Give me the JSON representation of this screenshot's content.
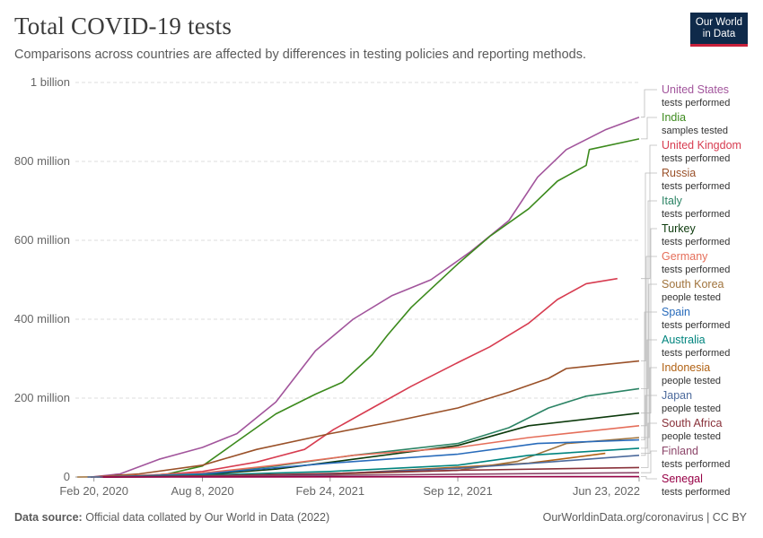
{
  "header": {
    "title": "Total COVID-19 tests",
    "subtitle": "Comparisons across countries are affected by differences in testing policies and reporting methods.",
    "logo_line1": "Our World",
    "logo_line2": "in Data"
  },
  "footer": {
    "source_label": "Data source:",
    "source_text": "Official data collated by Our World in Data (2022)",
    "right_text": "OurWorldinData.org/coronavirus | CC BY"
  },
  "chart_data": {
    "type": "line",
    "title": "Total COVID-19 tests",
    "subtitle": "Comparisons across countries are affected by differences in testing policies and reporting methods.",
    "xlabel": "",
    "ylabel": "",
    "x_range": [
      "2020-01-22",
      "2022-06-23"
    ],
    "x_ticks": [
      {
        "date": "2020-02-20",
        "label": "Feb 20, 2020"
      },
      {
        "date": "2020-08-08",
        "label": "Aug 8, 2020"
      },
      {
        "date": "2021-02-24",
        "label": "Feb 24, 2021"
      },
      {
        "date": "2021-09-12",
        "label": "Sep 12, 2021"
      },
      {
        "date": "2022-06-23",
        "label": "Jun 23, 2022"
      }
    ],
    "ylim": [
      0,
      1000000000
    ],
    "y_ticks": [
      {
        "value": 0,
        "label": "0"
      },
      {
        "value": 200000000,
        "label": "200 million"
      },
      {
        "value": 400000000,
        "label": "400 million"
      },
      {
        "value": 600000000,
        "label": "600 million"
      },
      {
        "value": 800000000,
        "label": "800 million"
      },
      {
        "value": 1000000000,
        "label": "1 billion"
      }
    ],
    "grid": true,
    "legend": "right",
    "series": [
      {
        "name": "United States",
        "unit": "tests performed",
        "color": "#a2559c",
        "points": [
          [
            "2020-02-15",
            0
          ],
          [
            "2020-04-01",
            8000000
          ],
          [
            "2020-06-01",
            45000000
          ],
          [
            "2020-08-08",
            75000000
          ],
          [
            "2020-10-01",
            110000000
          ],
          [
            "2020-12-01",
            190000000
          ],
          [
            "2021-02-01",
            320000000
          ],
          [
            "2021-04-01",
            400000000
          ],
          [
            "2021-06-01",
            460000000
          ],
          [
            "2021-08-01",
            500000000
          ],
          [
            "2021-10-01",
            570000000
          ],
          [
            "2021-12-01",
            650000000
          ],
          [
            "2022-01-15",
            760000000
          ],
          [
            "2022-03-01",
            830000000
          ],
          [
            "2022-05-01",
            880000000
          ],
          [
            "2022-06-23",
            912000000
          ]
        ]
      },
      {
        "name": "India",
        "unit": "samples tested",
        "color": "#3c8a1d",
        "points": [
          [
            "2020-03-01",
            0
          ],
          [
            "2020-05-01",
            2000000
          ],
          [
            "2020-06-15",
            8000000
          ],
          [
            "2020-08-08",
            28000000
          ],
          [
            "2020-10-01",
            90000000
          ],
          [
            "2020-12-01",
            160000000
          ],
          [
            "2021-02-01",
            210000000
          ],
          [
            "2021-03-15",
            240000000
          ],
          [
            "2021-05-01",
            310000000
          ],
          [
            "2021-05-25",
            360000000
          ],
          [
            "2021-07-01",
            430000000
          ],
          [
            "2021-09-12",
            540000000
          ],
          [
            "2021-11-01",
            610000000
          ],
          [
            "2022-01-01",
            680000000
          ],
          [
            "2022-02-15",
            750000000
          ],
          [
            "2022-04-01",
            790000000
          ],
          [
            "2022-04-06",
            830000000
          ],
          [
            "2022-06-23",
            857000000
          ]
        ]
      },
      {
        "name": "United Kingdom",
        "unit": "tests performed",
        "color": "#d73c50",
        "points": [
          [
            "2020-02-15",
            0
          ],
          [
            "2020-05-01",
            2000000
          ],
          [
            "2020-08-08",
            14000000
          ],
          [
            "2020-11-01",
            38000000
          ],
          [
            "2021-01-15",
            70000000
          ],
          [
            "2021-03-01",
            120000000
          ],
          [
            "2021-05-01",
            175000000
          ],
          [
            "2021-07-01",
            230000000
          ],
          [
            "2021-09-12",
            290000000
          ],
          [
            "2021-11-01",
            330000000
          ],
          [
            "2022-01-01",
            390000000
          ],
          [
            "2022-02-15",
            450000000
          ],
          [
            "2022-04-01",
            490000000
          ],
          [
            "2022-05-20",
            503000000
          ]
        ]
      },
      {
        "name": "Russia",
        "unit": "tests performed",
        "color": "#9a5129",
        "points": [
          [
            "2020-02-15",
            0
          ],
          [
            "2020-05-01",
            8000000
          ],
          [
            "2020-08-08",
            30000000
          ],
          [
            "2020-11-01",
            70000000
          ],
          [
            "2021-02-24",
            110000000
          ],
          [
            "2021-06-01",
            140000000
          ],
          [
            "2021-09-12",
            175000000
          ],
          [
            "2021-12-01",
            215000000
          ],
          [
            "2022-02-01",
            250000000
          ],
          [
            "2022-03-01",
            275000000
          ],
          [
            "2022-06-23",
            294000000
          ]
        ]
      },
      {
        "name": "Italy",
        "unit": "tests performed",
        "color": "#2c8465",
        "points": [
          [
            "2020-02-25",
            0
          ],
          [
            "2020-08-08",
            8000000
          ],
          [
            "2020-12-01",
            28000000
          ],
          [
            "2021-04-01",
            55000000
          ],
          [
            "2021-09-12",
            85000000
          ],
          [
            "2021-12-01",
            125000000
          ],
          [
            "2022-02-01",
            175000000
          ],
          [
            "2022-04-01",
            205000000
          ],
          [
            "2022-06-23",
            224000000
          ]
        ]
      },
      {
        "name": "Turkey",
        "unit": "tests performed",
        "color": "#0c3a0c",
        "points": [
          [
            "2020-03-10",
            0
          ],
          [
            "2020-08-08",
            6000000
          ],
          [
            "2020-12-01",
            20000000
          ],
          [
            "2021-04-01",
            45000000
          ],
          [
            "2021-09-12",
            80000000
          ],
          [
            "2022-01-01",
            130000000
          ],
          [
            "2022-06-23",
            162000000
          ]
        ]
      },
      {
        "name": "Germany",
        "unit": "tests performed",
        "color": "#e56e5a",
        "points": [
          [
            "2020-02-20",
            0
          ],
          [
            "2020-08-08",
            10000000
          ],
          [
            "2020-12-01",
            30000000
          ],
          [
            "2021-04-01",
            55000000
          ],
          [
            "2021-09-12",
            75000000
          ],
          [
            "2022-01-01",
            100000000
          ],
          [
            "2022-06-23",
            130000000
          ]
        ]
      },
      {
        "name": "South Korea",
        "unit": "people tested",
        "color": "#a0733c",
        "points": [
          [
            "2020-01-25",
            0
          ],
          [
            "2020-08-08",
            2000000
          ],
          [
            "2021-02-24",
            7000000
          ],
          [
            "2021-09-12",
            17000000
          ],
          [
            "2021-12-15",
            40000000
          ],
          [
            "2022-03-01",
            85000000
          ],
          [
            "2022-06-23",
            100000000
          ]
        ]
      },
      {
        "name": "Spain",
        "unit": "tests performed",
        "color": "#286bbb",
        "points": [
          [
            "2020-03-01",
            0
          ],
          [
            "2020-08-08",
            8000000
          ],
          [
            "2021-02-24",
            35000000
          ],
          [
            "2021-09-12",
            58000000
          ],
          [
            "2022-01-15",
            85000000
          ],
          [
            "2022-06-23",
            94000000
          ]
        ]
      },
      {
        "name": "Australia",
        "unit": "tests performed",
        "color": "#00847e",
        "points": [
          [
            "2020-03-01",
            0
          ],
          [
            "2020-08-08",
            5000000
          ],
          [
            "2021-02-24",
            14000000
          ],
          [
            "2021-09-12",
            30000000
          ],
          [
            "2022-01-01",
            55000000
          ],
          [
            "2022-06-23",
            73000000
          ]
        ]
      },
      {
        "name": "Indonesia",
        "unit": "people tested",
        "color": "#b16214",
        "points": [
          [
            "2020-03-05",
            0
          ],
          [
            "2020-08-08",
            1500000
          ],
          [
            "2021-02-24",
            7000000
          ],
          [
            "2021-09-12",
            25000000
          ],
          [
            "2022-01-01",
            35000000
          ],
          [
            "2022-05-01",
            60000000
          ]
        ]
      },
      {
        "name": "Japan",
        "unit": "people tested",
        "color": "#4c6a9c",
        "points": [
          [
            "2020-02-10",
            0
          ],
          [
            "2020-08-08",
            1000000
          ],
          [
            "2021-02-24",
            8000000
          ],
          [
            "2021-09-12",
            22000000
          ],
          [
            "2022-02-01",
            38000000
          ],
          [
            "2022-06-23",
            55000000
          ]
        ]
      },
      {
        "name": "South Africa",
        "unit": "people tested",
        "color": "#883039",
        "points": [
          [
            "2020-03-05",
            0
          ],
          [
            "2020-08-08",
            3000000
          ],
          [
            "2021-02-24",
            9000000
          ],
          [
            "2021-09-12",
            17000000
          ],
          [
            "2022-06-23",
            24000000
          ]
        ]
      },
      {
        "name": "Finland",
        "unit": "tests performed",
        "color": "#8c4569",
        "points": [
          [
            "2020-03-01",
            0
          ],
          [
            "2020-08-08",
            800000
          ],
          [
            "2021-02-24",
            4000000
          ],
          [
            "2021-09-12",
            7000000
          ],
          [
            "2022-06-23",
            11000000
          ]
        ]
      },
      {
        "name": "Senegal",
        "unit": "tests performed",
        "color": "#970046",
        "points": [
          [
            "2020-03-05",
            0
          ],
          [
            "2021-02-24",
            500000
          ],
          [
            "2022-06-23",
            1200000
          ]
        ]
      }
    ]
  }
}
